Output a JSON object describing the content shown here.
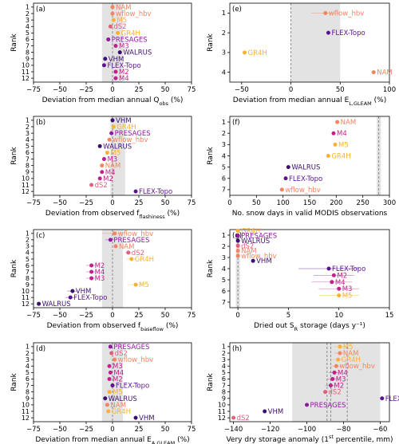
{
  "chart_data": [
    {
      "panel": "(a)",
      "type": "scatter",
      "xlabel": "Deviation from median annual Q",
      "xlabel_sub": "obs",
      "xlabel_unit": " (%)",
      "ylabel": "Rank",
      "xlim": [
        -75,
        75
      ],
      "xticks": [
        -75,
        -50,
        -25,
        0,
        25,
        50,
        75
      ],
      "ylim": [
        0.4,
        12.6
      ],
      "yticks": [
        1,
        2,
        3,
        4,
        5,
        6,
        7,
        8,
        9,
        10,
        11,
        12
      ],
      "shade": [
        -10,
        10
      ],
      "vlines": [
        0
      ],
      "points": [
        {
          "rank": 1,
          "x": 0,
          "err": 0,
          "label": "NAM",
          "color": "#f4845f"
        },
        {
          "rank": 2,
          "x": 0,
          "err": 0,
          "label": "wflow_hbv",
          "color": "#f4845f"
        },
        {
          "rank": 3,
          "x": 1,
          "err": 0,
          "label": "M5",
          "color": "#f8b134"
        },
        {
          "rank": 4,
          "x": -2,
          "err": 0,
          "label": "dS2",
          "color": "#e0607e"
        },
        {
          "rank": 5,
          "x": 5,
          "err": 0,
          "label": "GR4H",
          "color": "#f8b134"
        },
        {
          "rank": 6,
          "x": -4,
          "err": 0,
          "label": "PRESAGES",
          "color": "#8e1a9f"
        },
        {
          "rank": 7,
          "x": 3,
          "err": 0,
          "label": "M3",
          "color": "#c2218b"
        },
        {
          "rank": 8,
          "x": 7,
          "err": 0,
          "label": "WALRUS",
          "color": "#3b0f70"
        },
        {
          "rank": 9,
          "x": -7,
          "err": 0,
          "label": "VHM",
          "color": "#3b0f70"
        },
        {
          "rank": 10,
          "x": -8,
          "err": 0,
          "label": "FLEX-Topo",
          "color": "#5b138f"
        },
        {
          "rank": 11,
          "x": 3,
          "err": 0,
          "label": "M2",
          "color": "#c2218b"
        },
        {
          "rank": 12,
          "x": 3,
          "err": 0,
          "label": "M4",
          "color": "#c2218b"
        }
      ]
    },
    {
      "panel": "(e)",
      "type": "scatter",
      "xlabel": "Deviation from median annual E",
      "xlabel_sub": "L,GLEAM",
      "xlabel_unit": " (%)",
      "ylabel": "Rank",
      "xlim": [
        -62,
        100
      ],
      "xticks": [
        -50,
        0,
        50,
        100
      ],
      "ylim": [
        0.5,
        4.5
      ],
      "yticks": [
        1,
        2,
        3,
        4
      ],
      "shade": [
        0,
        50
      ],
      "vlines": [
        0
      ],
      "points": [
        {
          "rank": 1,
          "x": 35,
          "err": 14,
          "label": "wflow_hbv",
          "color": "#f4845f"
        },
        {
          "rank": 2,
          "x": 38,
          "err": 0,
          "label": "FLEX-Topo",
          "color": "#5b138f"
        },
        {
          "rank": 3,
          "x": -47,
          "err": 0,
          "label": "GR4H",
          "color": "#f8b134"
        },
        {
          "rank": 4,
          "x": 84,
          "err": 0,
          "label": "NAM",
          "color": "#f4845f"
        }
      ]
    },
    {
      "panel": "(b)",
      "type": "scatter",
      "xlabel": "Deviation from observed f",
      "xlabel_sub": "flashiness",
      "xlabel_unit": " (%)",
      "ylabel": "Rank",
      "xlim": [
        -75,
        75
      ],
      "xticks": [
        -75,
        -50,
        -25,
        0,
        25,
        50,
        75
      ],
      "ylim": [
        0.4,
        12.6
      ],
      "yticks": [
        1,
        2,
        3,
        4,
        5,
        6,
        7,
        8,
        9,
        10,
        11,
        12
      ],
      "shade": [
        -2,
        12
      ],
      "vlines": [
        0
      ],
      "points": [
        {
          "rank": 1,
          "x": 0,
          "err": 0,
          "label": "VHM",
          "color": "#3b0f70"
        },
        {
          "rank": 2,
          "x": 1,
          "err": 0,
          "label": "GR4H",
          "color": "#f8b134"
        },
        {
          "rank": 3,
          "x": -1,
          "err": 0,
          "label": "PRESAGES",
          "color": "#8e1a9f"
        },
        {
          "rank": 4,
          "x": -3,
          "err": 0,
          "label": "wflow_hbv",
          "color": "#f4845f"
        },
        {
          "rank": 5,
          "x": -12,
          "err": 0,
          "label": "WALRUS",
          "color": "#3b0f70"
        },
        {
          "rank": 6,
          "x": -5,
          "err": 0,
          "label": "M5",
          "color": "#f8b134"
        },
        {
          "rank": 7,
          "x": -8,
          "err": 0,
          "label": "M3",
          "color": "#c2218b"
        },
        {
          "rank": 8,
          "x": -10,
          "err": 0,
          "label": "NAM",
          "color": "#f4845f"
        },
        {
          "rank": 9,
          "x": -10,
          "err": 0,
          "label": "M4",
          "color": "#c2218b"
        },
        {
          "rank": 10,
          "x": -12,
          "err": 0,
          "label": "M2",
          "color": "#c2218b"
        },
        {
          "rank": 11,
          "x": -20,
          "err": 0,
          "label": "dS2",
          "color": "#e0607e"
        },
        {
          "rank": 12,
          "x": 22,
          "err": 0,
          "label": "FLEX-Topo",
          "color": "#5b138f"
        }
      ]
    },
    {
      "panel": "(f)",
      "type": "scatter",
      "xlabel": "No. snow days in valid MODIS observations",
      "xlabel_sub": "",
      "xlabel_unit": "",
      "ylabel": "Rank",
      "xlim": [
        0,
        300
      ],
      "xticks": [
        0,
        50,
        100,
        150,
        200,
        250,
        300
      ],
      "ylim": [
        0.5,
        7.5
      ],
      "yticks": [
        1,
        2,
        3,
        4,
        5,
        6,
        7
      ],
      "shade": [
        276,
        284
      ],
      "vlines": [
        280
      ],
      "points": [
        {
          "rank": 1,
          "x": 202,
          "err": 0,
          "label": "NAM",
          "color": "#f4845f"
        },
        {
          "rank": 2,
          "x": 195,
          "err": 0,
          "label": "M4",
          "color": "#c2218b"
        },
        {
          "rank": 3,
          "x": 198,
          "err": 0,
          "label": "M5",
          "color": "#f8b134"
        },
        {
          "rank": 4,
          "x": 185,
          "err": 0,
          "label": "GR4H",
          "color": "#f8b134"
        },
        {
          "rank": 5,
          "x": 110,
          "err": 0,
          "label": "WALRUS",
          "color": "#3b0f70"
        },
        {
          "rank": 6,
          "x": 105,
          "err": 0,
          "label": "FLEX-Topo",
          "color": "#5b138f"
        },
        {
          "rank": 7,
          "x": 98,
          "err": 0,
          "label": "wflow_hbv",
          "color": "#f4845f"
        }
      ]
    },
    {
      "panel": "(c)",
      "type": "scatter",
      "xlabel": "Deviation from observed f",
      "xlabel_sub": "baseflow",
      "xlabel_unit": " (%)",
      "ylabel": "Rank",
      "xlim": [
        -75,
        75
      ],
      "xticks": [
        -75,
        -50,
        -25,
        0,
        25,
        50,
        75
      ],
      "ylim": [
        0.4,
        12.6
      ],
      "yticks": [
        1,
        2,
        3,
        4,
        5,
        6,
        7,
        8,
        9,
        10,
        11,
        12
      ],
      "shade": [
        -10,
        10
      ],
      "vlines": [
        0
      ],
      "points": [
        {
          "rank": 1,
          "x": 2,
          "err": 12,
          "label": "wflow_hbv",
          "color": "#f4845f"
        },
        {
          "rank": 2,
          "x": -2,
          "err": 5,
          "label": "PRESAGES",
          "color": "#8e1a9f"
        },
        {
          "rank": 3,
          "x": 3,
          "err": 0,
          "label": "NAM",
          "color": "#f4845f"
        },
        {
          "rank": 4,
          "x": 15,
          "err": 3,
          "label": "dS2",
          "color": "#e0607e"
        },
        {
          "rank": 5,
          "x": 18,
          "err": 5,
          "label": "GR4H",
          "color": "#f8b134"
        },
        {
          "rank": 6,
          "x": -20,
          "err": 5,
          "label": "M2",
          "color": "#c2218b"
        },
        {
          "rank": 7,
          "x": -20,
          "err": 5,
          "label": "M4",
          "color": "#c2218b"
        },
        {
          "rank": 8,
          "x": -20,
          "err": 5,
          "label": "M3",
          "color": "#c2218b"
        },
        {
          "rank": 9,
          "x": 22,
          "err": 8,
          "label": "M5",
          "color": "#f8b134"
        },
        {
          "rank": 10,
          "x": -38,
          "err": 5,
          "label": "VHM",
          "color": "#3b0f70"
        },
        {
          "rank": 11,
          "x": -40,
          "err": 5,
          "label": "FLEX-Topo",
          "color": "#5b138f"
        },
        {
          "rank": 12,
          "x": -70,
          "err": 0,
          "label": "WALRUS",
          "color": "#3b0f70"
        }
      ]
    },
    {
      "panel": "(g)",
      "type": "scatter",
      "xlabel": "Dried out S",
      "xlabel_sub": "R",
      "xlabel_unit": " storage (days y⁻¹)",
      "ylabel": "Rank",
      "xlim": [
        -0.8,
        15
      ],
      "xticks": [
        0,
        5,
        10,
        15
      ],
      "ylim": [
        0.5,
        7.5
      ],
      "yticks": [
        1,
        2,
        3,
        4,
        5,
        6,
        7
      ],
      "shade": [
        -0.2,
        0.2
      ],
      "vlines": [
        0
      ],
      "left_points": [
        {
          "y": 0.6,
          "x": 0,
          "label": "GR4H",
          "color": "#f8b134"
        },
        {
          "y": 1.05,
          "x": 0,
          "label": "PRESAGES",
          "color": "#8e1a9f"
        },
        {
          "y": 1.5,
          "x": 0,
          "label": "WALRUS",
          "color": "#3b0f70"
        },
        {
          "y": 1.95,
          "x": 0,
          "label": "dS2",
          "color": "#e0607e"
        },
        {
          "y": 2.4,
          "x": 0,
          "label": "NAM",
          "color": "#f4845f"
        },
        {
          "y": 2.85,
          "x": 0,
          "label": "wflow_hbv",
          "color": "#f4845f"
        }
      ],
      "points": [
        {
          "rank": 3.3,
          "x": 1.5,
          "err": 0,
          "label": "VHM",
          "color": "#3b0f70"
        },
        {
          "rank": 4,
          "x": 9,
          "err": 3,
          "label": "FLEX-Topo",
          "color": "#5b138f"
        },
        {
          "rank": 4.6,
          "x": 9.5,
          "err": 2,
          "label": "M2",
          "color": "#c2218b"
        },
        {
          "rank": 5.2,
          "x": 9.3,
          "err": 2,
          "label": "M4",
          "color": "#c2218b"
        },
        {
          "rank": 5.8,
          "x": 10,
          "err": 2,
          "label": "M3",
          "color": "#c2218b"
        },
        {
          "rank": 6.4,
          "x": 10,
          "err": 2,
          "label": "M5",
          "color": "#f8b134"
        }
      ]
    },
    {
      "panel": "(d)",
      "type": "scatter",
      "xlabel": "Deviation from median annual E",
      "xlabel_sub": "A,GLEAM",
      "xlabel_unit": " (%)",
      "ylabel": "Rank",
      "xlim": [
        -75,
        75
      ],
      "xticks": [
        -75,
        -50,
        -25,
        0,
        25,
        50,
        75
      ],
      "ylim": [
        0.4,
        12.6
      ],
      "yticks": [
        1,
        2,
        3,
        4,
        5,
        6,
        7,
        8,
        9,
        10,
        11,
        12
      ],
      "shade": [
        -10,
        10
      ],
      "vlines": [
        0
      ],
      "points": [
        {
          "rank": 1,
          "x": -2,
          "err": 0,
          "label": "PRESAGES",
          "color": "#8e1a9f"
        },
        {
          "rank": 2,
          "x": -1,
          "err": 0,
          "label": "dS2",
          "color": "#e0607e"
        },
        {
          "rank": 3,
          "x": 2,
          "err": 0,
          "label": "wflow_hbv",
          "color": "#f4845f"
        },
        {
          "rank": 4,
          "x": -3,
          "err": 0,
          "label": "M3",
          "color": "#c2218b"
        },
        {
          "rank": 5,
          "x": -2,
          "err": 0,
          "label": "M4",
          "color": "#c2218b"
        },
        {
          "rank": 6,
          "x": -3,
          "err": 0,
          "label": "M2",
          "color": "#c2218b"
        },
        {
          "rank": 7,
          "x": 0,
          "err": 0,
          "label": "FLEX-Topo",
          "color": "#5b138f"
        },
        {
          "rank": 8,
          "x": -3,
          "err": 0,
          "label": "M5",
          "color": "#f8b134"
        },
        {
          "rank": 9,
          "x": -7,
          "err": 0,
          "label": "WALRUS",
          "color": "#3b0f70"
        },
        {
          "rank": 10,
          "x": -5,
          "err": 0,
          "label": "NAM",
          "color": "#f4845f"
        },
        {
          "rank": 11,
          "x": -4,
          "err": 0,
          "label": "GR4H",
          "color": "#f8b134"
        },
        {
          "rank": 12,
          "x": 22,
          "err": 0,
          "label": "VHM",
          "color": "#3b0f70"
        }
      ]
    },
    {
      "panel": "(h)",
      "type": "scatter",
      "xlabel": "Very dry storage anomaly (1",
      "xlabel_sup": "st",
      "xlabel_unit": " percentile, mm)",
      "ylabel": "Rank",
      "xlim": [
        -142,
        -55
      ],
      "xticks": [
        -140,
        -120,
        -100,
        -80,
        -60
      ],
      "ylim": [
        0.4,
        12.6
      ],
      "yticks": [
        1,
        2,
        3,
        4,
        5,
        6,
        7,
        8,
        9,
        10,
        11,
        12
      ],
      "shade": [
        -108,
        -60
      ],
      "vlines": [
        -89,
        -87,
        -78
      ],
      "points": [
        {
          "rank": 1,
          "x": -82,
          "err": 3,
          "label": "M5",
          "color": "#f8b134"
        },
        {
          "rank": 2,
          "x": -82,
          "err": 3,
          "label": "NAM",
          "color": "#f4845f"
        },
        {
          "rank": 3,
          "x": -83,
          "err": 3,
          "label": "GR4H",
          "color": "#f8b134"
        },
        {
          "rank": 4,
          "x": -84,
          "err": 3,
          "label": "wflow_hbv",
          "color": "#f4845f"
        },
        {
          "rank": 5,
          "x": -85,
          "err": 3,
          "label": "M4",
          "color": "#c2218b"
        },
        {
          "rank": 6,
          "x": -86,
          "err": 3,
          "label": "M3",
          "color": "#c2218b"
        },
        {
          "rank": 7,
          "x": -87,
          "err": 3,
          "label": "M2",
          "color": "#c2218b"
        },
        {
          "rank": 8,
          "x": -90,
          "err": 0,
          "label": "dS2",
          "color": "#e0607e"
        },
        {
          "rank": 9,
          "x": -59,
          "err": 0,
          "label": "FLEX-Topo",
          "color": "#5b138f"
        },
        {
          "rank": 10,
          "x": -100,
          "err": 0,
          "label": "PRESAGES",
          "color": "#8e1a9f"
        },
        {
          "rank": 11,
          "x": -123,
          "err": 0,
          "label": "VHM",
          "color": "#3b0f70"
        },
        {
          "rank": 12,
          "x": -140,
          "err": 0,
          "label": "dS2",
          "color": "#e0607e"
        }
      ]
    }
  ]
}
